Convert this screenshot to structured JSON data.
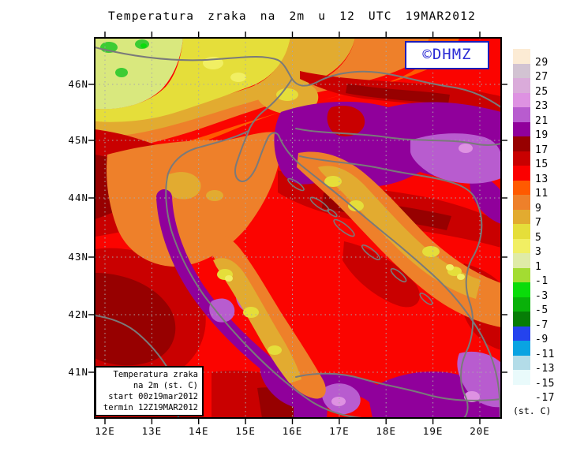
{
  "title": "Temperatura zraka na 2m u 12 UTC 19MAR2012",
  "logo": {
    "text": "©DHMZ",
    "text_color": "#2b2bd5",
    "border_color": "#1c1cb8"
  },
  "axes": {
    "x_labels": [
      "12E",
      "13E",
      "14E",
      "15E",
      "16E",
      "17E",
      "18E",
      "19E",
      "20E"
    ],
    "y_labels": [
      "46N",
      "45N",
      "44N",
      "43N",
      "42N",
      "41N"
    ]
  },
  "legend": {
    "units": "(st. C)",
    "entries": [
      {
        "label": "29",
        "color": "#FCEBD4"
      },
      {
        "label": "27",
        "color": "#D2C3D2"
      },
      {
        "label": "25",
        "color": "#DAABDA"
      },
      {
        "label": "23",
        "color": "#DE92E2"
      },
      {
        "label": "21",
        "color": "#B85CCF"
      },
      {
        "label": "19",
        "color": "#90009B"
      },
      {
        "label": "17",
        "color": "#970000"
      },
      {
        "label": "15",
        "color": "#C90000"
      },
      {
        "label": "13",
        "color": "#FB0000"
      },
      {
        "label": "11",
        "color": "#FF5A00"
      },
      {
        "label": "9",
        "color": "#EE802A"
      },
      {
        "label": "7",
        "color": "#E2AB30"
      },
      {
        "label": "5",
        "color": "#E5DE3A"
      },
      {
        "label": "3",
        "color": "#F1EF63"
      },
      {
        "label": "1",
        "color": "#DFEBA7"
      },
      {
        "label": "-1",
        "color": "#A3DC32"
      },
      {
        "label": "-3",
        "color": "#0ADC0A"
      },
      {
        "label": "-5",
        "color": "#09B109"
      },
      {
        "label": "-7",
        "color": "#067D06"
      },
      {
        "label": "-9",
        "color": "#2443EE"
      },
      {
        "label": "-11",
        "color": "#09A3E2"
      },
      {
        "label": "-13",
        "color": "#B3DCE8"
      },
      {
        "label": "-15",
        "color": "#E9FAFB"
      },
      {
        "label": "-17",
        "color": "#FFFFFF"
      }
    ]
  },
  "inset": {
    "lines": [
      "Temperatura zraka",
      "na 2m (st. C)",
      "start 00z19mar2012",
      "termin 12Z19MAR2012"
    ]
  },
  "map_colors": {
    "base_field": "#FB0400",
    "coastline": "#7a7a7a",
    "gridline": "#a9a9a9",
    "frame": "#000000"
  }
}
